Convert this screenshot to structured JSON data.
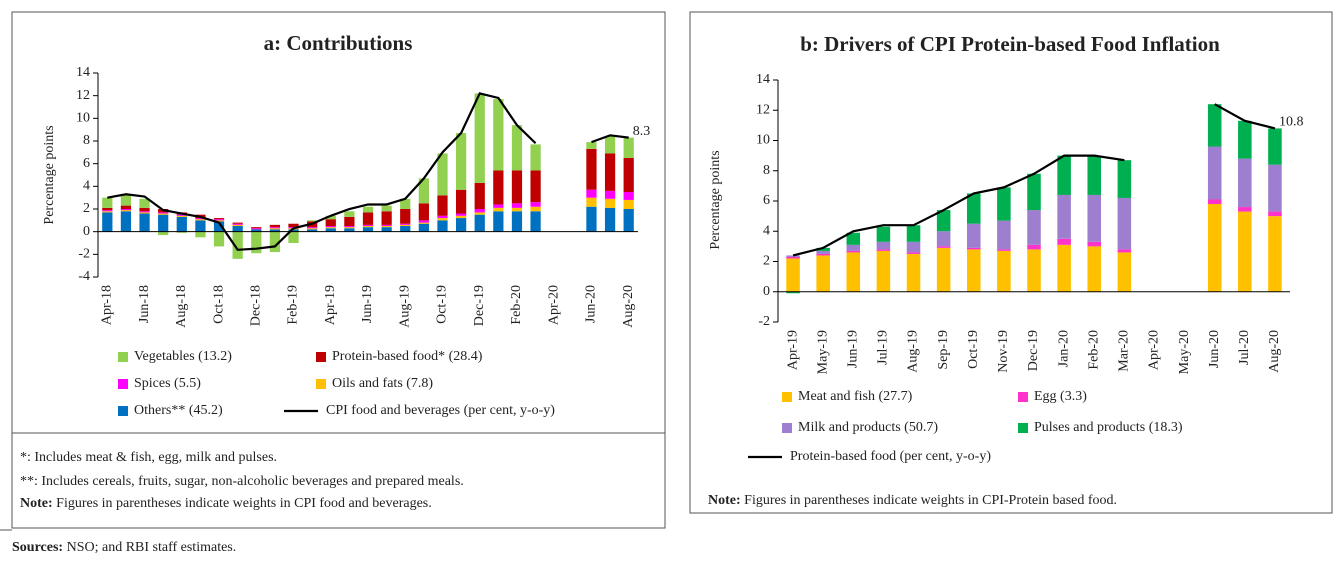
{
  "chart_data": [
    {
      "type": "bar",
      "stacked": true,
      "title": "a: Contributions",
      "ylabel": "Percentage points",
      "categories": [
        "Apr-18",
        null,
        "Jun-18",
        null,
        "Aug-18",
        null,
        "Oct-18",
        null,
        "Dec-18",
        null,
        "Feb-19",
        null,
        "Apr-19",
        null,
        "Jun-19",
        null,
        "Aug-19",
        null,
        "Oct-19",
        null,
        "Dec-19",
        null,
        "Feb-20",
        null,
        "Apr-20",
        null,
        "Jun-20",
        null,
        "Aug-20"
      ],
      "series": [
        {
          "name": "Others** (45.2)",
          "color": "#0070c0",
          "values": [
            1.7,
            1.8,
            1.6,
            1.5,
            1.3,
            1.0,
            0.9,
            0.5,
            0.2,
            0.2,
            0.2,
            0.2,
            0.3,
            0.3,
            0.4,
            0.4,
            0.5,
            0.7,
            1.0,
            1.2,
            1.5,
            1.8,
            1.8,
            1.8,
            null,
            null,
            2.2,
            2.1,
            2.0
          ]
        },
        {
          "name": "Oils and fats (7.8)",
          "color": "#ffc000",
          "values": [
            0.1,
            0.1,
            0.1,
            0.1,
            0.1,
            0.1,
            0.1,
            0.1,
            0.0,
            0.1,
            0.1,
            0.1,
            0.1,
            0.1,
            0.1,
            0.1,
            0.1,
            0.1,
            0.2,
            0.2,
            0.2,
            0.3,
            0.3,
            0.4,
            null,
            null,
            0.8,
            0.8,
            0.8
          ]
        },
        {
          "name": "Spices (5.5)",
          "color": "#ff00ff",
          "values": [
            0.1,
            0.1,
            0.1,
            0.1,
            0.1,
            0.1,
            0.1,
            0.1,
            0.1,
            0.1,
            0.1,
            0.1,
            0.1,
            0.1,
            0.1,
            0.1,
            0.1,
            0.2,
            0.2,
            0.2,
            0.3,
            0.3,
            0.4,
            0.4,
            null,
            null,
            0.7,
            0.7,
            0.7
          ]
        },
        {
          "name": "Protein-based food* (28.4)",
          "color": "#c00000",
          "values": [
            0.2,
            0.3,
            0.3,
            0.3,
            0.2,
            0.3,
            0.1,
            0.1,
            0.1,
            0.2,
            0.3,
            0.5,
            0.6,
            0.8,
            1.1,
            1.2,
            1.3,
            1.5,
            1.8,
            2.1,
            2.3,
            3.0,
            2.9,
            2.8,
            null,
            null,
            3.6,
            3.3,
            3.0
          ]
        },
        {
          "name": "Vegetables (13.2)",
          "color": "#92d050",
          "values": [
            0.9,
            0.9,
            0.8,
            -0.3,
            -0.1,
            -0.5,
            -1.3,
            -2.4,
            -1.9,
            -1.8,
            -1.0,
            0.1,
            0.3,
            0.5,
            0.5,
            0.5,
            0.9,
            2.2,
            3.7,
            5.0,
            7.9,
            6.3,
            4.0,
            2.3,
            null,
            null,
            0.6,
            1.5,
            1.8
          ]
        }
      ],
      "line": {
        "name": "CPI food and beverages (per cent, y-o-y)",
        "color": "#000000",
        "values": [
          3.0,
          3.3,
          3.1,
          1.9,
          1.6,
          1.3,
          0.8,
          -1.6,
          -1.5,
          -1.3,
          0.3,
          0.7,
          1.4,
          2.0,
          2.4,
          2.4,
          2.9,
          4.7,
          7.0,
          8.7,
          12.2,
          11.8,
          9.4,
          7.8,
          null,
          null,
          7.9,
          8.5,
          8.3
        ]
      },
      "ylim": [
        -4,
        14
      ],
      "yticks": [
        -4,
        -2,
        0,
        2,
        4,
        6,
        8,
        10,
        12,
        14
      ],
      "grid": false,
      "footnotes": [
        "*: Includes meat & fish, egg, milk and pulses.",
        "**: Includes cereals, fruits, sugar, non-alcoholic beverages and prepared meals."
      ],
      "note": {
        "label": "Note:",
        "text": " Figures in parentheses indicate weights in CPI food and beverages."
      }
    },
    {
      "type": "bar",
      "stacked": true,
      "title": "b: Drivers of CPI Protein-based Food Inflation",
      "ylabel": "Percentage points",
      "categories": [
        "Apr-19",
        "May-19",
        "Jun-19",
        "Jul-19",
        "Aug-19",
        "Sep-19",
        "Oct-19",
        "Nov-19",
        "Dec-19",
        "Jan-20",
        "Feb-20",
        "Mar-20",
        "Apr-20",
        "May-20",
        "Jun-20",
        "Jul-20",
        "Aug-20"
      ],
      "series": [
        {
          "name": "Meat and fish (27.7)",
          "color": "#ffc000",
          "values": [
            2.2,
            2.4,
            2.6,
            2.7,
            2.5,
            2.9,
            2.8,
            2.7,
            2.8,
            3.1,
            3.0,
            2.6,
            null,
            null,
            5.8,
            5.3,
            5.0
          ]
        },
        {
          "name": "Egg (3.3)",
          "color": "#ff33cc",
          "values": [
            0.1,
            0.1,
            0.1,
            0.1,
            0.1,
            0.1,
            0.1,
            0.1,
            0.3,
            0.4,
            0.3,
            0.2,
            null,
            null,
            0.3,
            0.3,
            0.3
          ]
        },
        {
          "name": "Milk and products (50.7)",
          "color": "#9e7fcf",
          "values": [
            0.1,
            0.2,
            0.4,
            0.5,
            0.7,
            1.0,
            1.6,
            1.9,
            2.3,
            2.9,
            3.1,
            3.4,
            null,
            null,
            3.5,
            3.2,
            3.1
          ]
        },
        {
          "name": "Pulses and products (18.3)",
          "color": "#00b050",
          "values": [
            -0.1,
            0.2,
            0.8,
            1.0,
            1.1,
            1.4,
            2.0,
            2.2,
            2.4,
            2.6,
            2.6,
            2.5,
            null,
            null,
            2.8,
            2.5,
            2.4
          ]
        }
      ],
      "line": {
        "name": "Protein-based food (per cent, y-o-y)",
        "color": "#000000",
        "values": [
          2.4,
          2.9,
          4.0,
          4.4,
          4.4,
          5.4,
          6.5,
          6.9,
          7.8,
          9.0,
          9.0,
          8.7,
          null,
          null,
          12.4,
          11.3,
          10.8
        ]
      },
      "ylim": [
        -2,
        14
      ],
      "yticks": [
        -2,
        0,
        2,
        4,
        6,
        8,
        10,
        12,
        14
      ],
      "grid": false,
      "note": {
        "label": "Note:",
        "text": " Figures in parentheses indicate weights in CPI-Protein based food."
      }
    }
  ],
  "sources": {
    "label": "Sources:",
    "text": " NSO; and RBI staff estimates."
  }
}
